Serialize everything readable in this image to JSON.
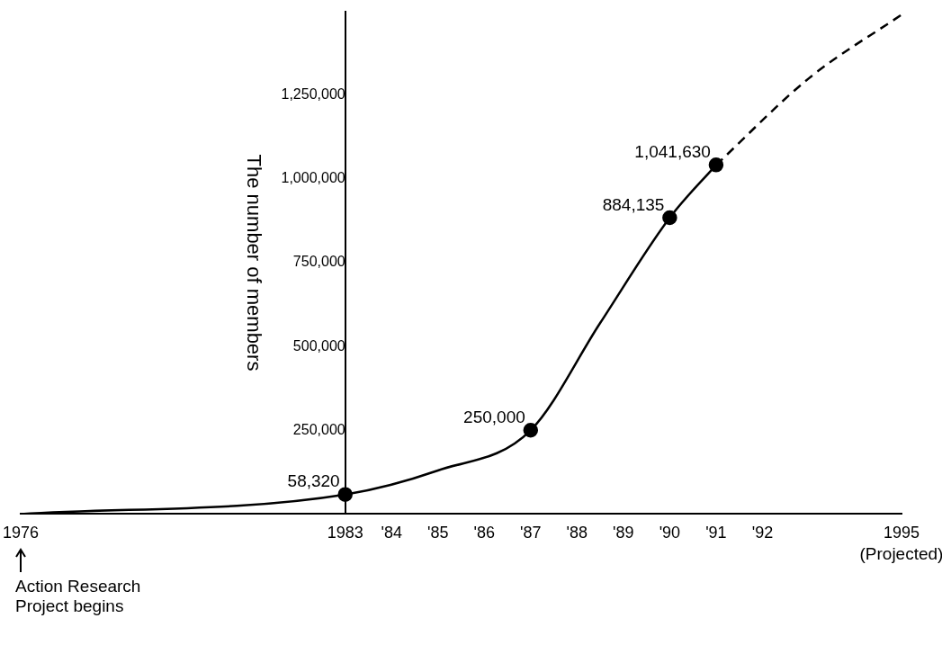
{
  "chart_data": {
    "type": "line",
    "ylabel": "The number of members",
    "xlim": [
      1976,
      1995
    ],
    "xticks": [
      1976,
      1983,
      {
        "value": 1984,
        "label": "'84"
      },
      {
        "value": 1985,
        "label": "'85"
      },
      {
        "value": 1986,
        "label": "'86"
      },
      {
        "value": 1987,
        "label": "'87"
      },
      {
        "value": 1988,
        "label": "'88"
      },
      {
        "value": 1989,
        "label": "'89"
      },
      {
        "value": 1990,
        "label": "'90"
      },
      {
        "value": 1991,
        "label": "'91"
      },
      {
        "value": 1992,
        "label": "'92"
      },
      1995
    ],
    "ylim": [
      0,
      1500000
    ],
    "yticks": [
      {
        "value": 250000,
        "label": "250,000"
      },
      {
        "value": 500000,
        "label": "500,000"
      },
      {
        "value": 750000,
        "label": "750,000"
      },
      {
        "value": 1000000,
        "label": "1,000,000"
      },
      {
        "value": 1250000,
        "label": "1,250,000"
      }
    ],
    "grid": false,
    "legend": false,
    "marker": "circle",
    "series": [
      {
        "color": "#000000",
        "line_style": "solid",
        "x": [
          1976,
          1983,
          1985,
          1987,
          1988.5,
          1990,
          1991
        ],
        "values": [
          0,
          58320,
          130000,
          250000,
          570000,
          884135,
          1041630
        ],
        "value_labels": [
          null,
          "58,320",
          null,
          "250,000",
          null,
          "884,135",
          "1,041,630"
        ]
      },
      {
        "color": "#000000",
        "line_style": "dashed",
        "marker": "none",
        "x": [
          1991,
          1993,
          1995
        ],
        "values": [
          1041630,
          1300000,
          1490000
        ]
      }
    ],
    "annotations": [
      "(Projected)",
      "Action Research Project begins"
    ]
  }
}
